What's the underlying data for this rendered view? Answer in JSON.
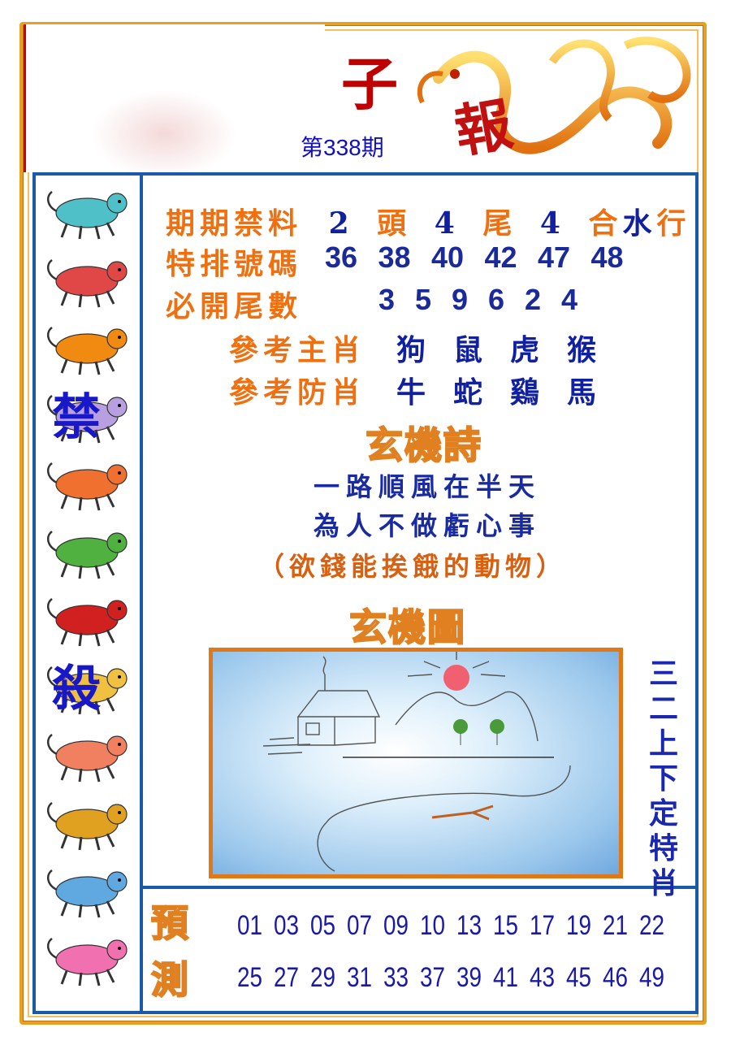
{
  "header": {
    "title_char": "子",
    "issue": "第338期"
  },
  "sidebar": {
    "animals": [
      {
        "name": "rat",
        "color": "#4fbfc8"
      },
      {
        "name": "ox",
        "color": "#e04848"
      },
      {
        "name": "tiger",
        "color": "#f08a10"
      },
      {
        "name": "rabbit",
        "color": "#b8a0e0",
        "overlay": "禁"
      },
      {
        "name": "dragon",
        "color": "#f07030"
      },
      {
        "name": "snake",
        "color": "#50b040"
      },
      {
        "name": "horse",
        "color": "#d02020"
      },
      {
        "name": "goat",
        "color": "#f0c040",
        "overlay": "殺"
      },
      {
        "name": "monkey",
        "color": "#f08060"
      },
      {
        "name": "rooster",
        "color": "#e0a020"
      },
      {
        "name": "dog",
        "color": "#60a8e0"
      },
      {
        "name": "pig",
        "color": "#f070b0"
      }
    ]
  },
  "info": {
    "row1": {
      "label": "期期禁料",
      "parts": [
        "2",
        "頭",
        "4",
        "尾",
        "4",
        "合",
        "水",
        "行"
      ]
    },
    "row2": {
      "label": "特排號碼",
      "numbers": [
        "36",
        "38",
        "40",
        "42",
        "47",
        "48"
      ]
    },
    "row3": {
      "label": "必開尾數",
      "numbers": [
        "3",
        "5",
        "9",
        "6",
        "2",
        "4"
      ]
    },
    "row4": {
      "label": "參考主肖",
      "zodiacs": [
        "狗",
        "鼠",
        "虎",
        "猴"
      ]
    },
    "row5": {
      "label": "參考防肖",
      "zodiacs": [
        "牛",
        "蛇",
        "鷄",
        "馬"
      ]
    }
  },
  "poem": {
    "title": "玄機詩",
    "line1": "一路順風在半天",
    "line2": "為人不做虧心事",
    "hint": "（欲錢能挨餓的動物）"
  },
  "picture": {
    "title": "玄機圖"
  },
  "vertical_text": [
    "三",
    "二",
    "上",
    "下",
    "定",
    "特",
    "肖"
  ],
  "predict": {
    "label": [
      "預",
      "測"
    ],
    "row1": [
      "01",
      "03",
      "05",
      "07",
      "09",
      "10",
      "13",
      "15",
      "17",
      "19",
      "21",
      "22"
    ],
    "row2": [
      "25",
      "27",
      "29",
      "31",
      "33",
      "37",
      "39",
      "41",
      "43",
      "45",
      "46",
      "49"
    ]
  },
  "colors": {
    "frame_orange": "#e8a020",
    "frame_blue": "#1a5aa8",
    "label_orange": "#f07010",
    "text_blue": "#1a2a9a"
  }
}
